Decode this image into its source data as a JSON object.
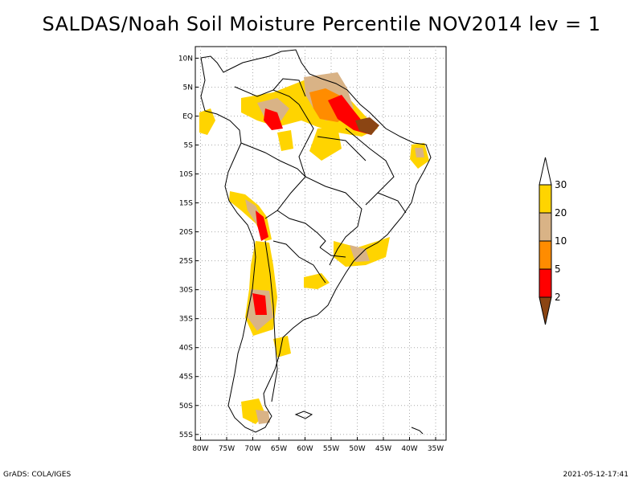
{
  "title": "SALDAS/Noah Soil Moisture Percentile NOV2014 lev = 1",
  "footer_left": "GrADS: COLA/IGES",
  "footer_right": "2021-05-12-17:41",
  "map": {
    "lon_range": [
      -81,
      -33
    ],
    "lat_range": [
      -56,
      12
    ],
    "lat_ticks": [
      {
        "value": 10,
        "label": "10N"
      },
      {
        "value": 5,
        "label": "5N"
      },
      {
        "value": 0,
        "label": "EQ"
      },
      {
        "value": -5,
        "label": "5S"
      },
      {
        "value": -10,
        "label": "10S"
      },
      {
        "value": -15,
        "label": "15S"
      },
      {
        "value": -20,
        "label": "20S"
      },
      {
        "value": -25,
        "label": "25S"
      },
      {
        "value": -30,
        "label": "30S"
      },
      {
        "value": -35,
        "label": "35S"
      },
      {
        "value": -40,
        "label": "40S"
      },
      {
        "value": -45,
        "label": "45S"
      },
      {
        "value": -50,
        "label": "50S"
      },
      {
        "value": -55,
        "label": "55S"
      }
    ],
    "lon_ticks": [
      {
        "value": -80,
        "label": "80W"
      },
      {
        "value": -75,
        "label": "75W"
      },
      {
        "value": -70,
        "label": "70W"
      },
      {
        "value": -65,
        "label": "65W"
      },
      {
        "value": -60,
        "label": "60W"
      },
      {
        "value": -55,
        "label": "55W"
      },
      {
        "value": -50,
        "label": "50W"
      },
      {
        "value": -45,
        "label": "45W"
      },
      {
        "value": -40,
        "label": "40W"
      },
      {
        "value": -35,
        "label": "35W"
      }
    ],
    "grid": true
  },
  "colorbar": {
    "labels": [
      "30",
      "20",
      "10",
      "5",
      "2"
    ],
    "colors": [
      "#ffffff",
      "#ffd400",
      "#d9b386",
      "#ff8c00",
      "#ff0000",
      "#8b4513"
    ]
  }
}
